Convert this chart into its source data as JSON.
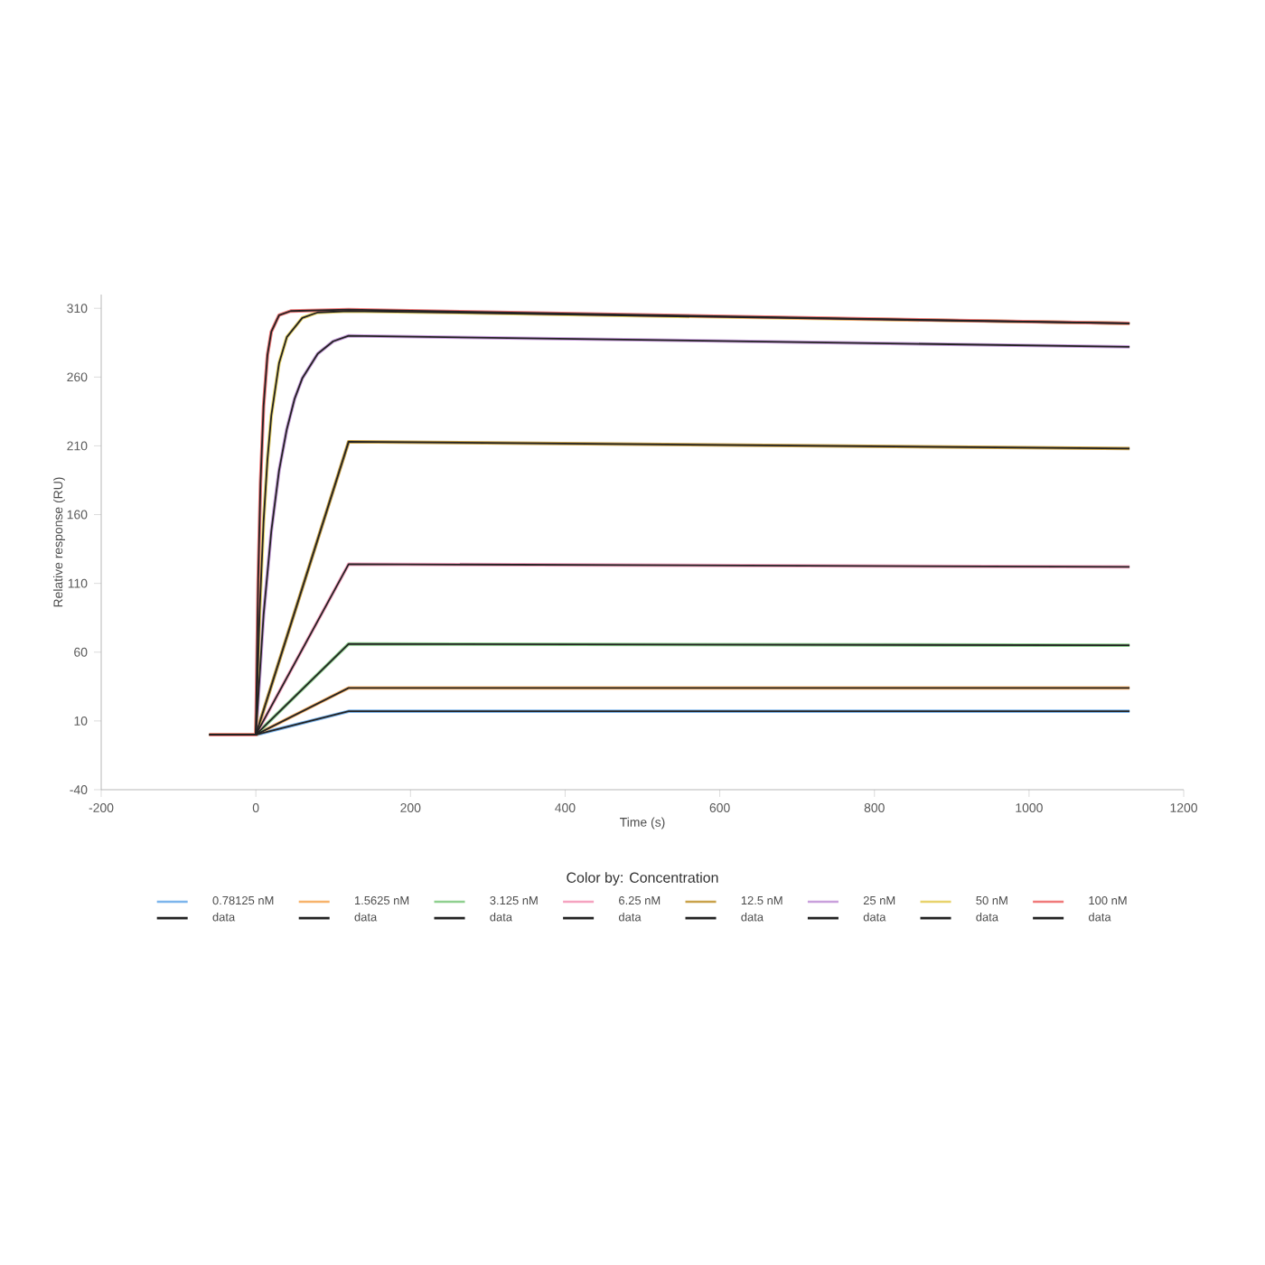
{
  "chart_data": {
    "type": "line",
    "xlabel": "Time (s)",
    "ylabel": "Relative response (RU)",
    "legend_title": "Color by: Concentration",
    "legend": "bottom",
    "xlim": [
      -200,
      1200
    ],
    "ylim": [
      -40,
      320
    ],
    "xticks": [
      -200,
      0,
      200,
      400,
      600,
      800,
      1000,
      1200
    ],
    "yticks": [
      -40,
      10,
      60,
      110,
      160,
      210,
      260,
      310
    ],
    "grid": false,
    "line_style": "solid",
    "series": [
      {
        "name": "0.78125 nM",
        "color": "#7cb5ec",
        "x": [
          -60,
          0,
          120,
          1130
        ],
        "values": [
          0,
          0,
          17,
          17
        ]
      },
      {
        "name": "1.5625 nM",
        "color": "#f7b36b",
        "x": [
          -60,
          0,
          120,
          1130
        ],
        "values": [
          0,
          0,
          34,
          34
        ]
      },
      {
        "name": "3.125 nM",
        "color": "#8fd08f",
        "x": [
          -60,
          0,
          120,
          1130
        ],
        "values": [
          0,
          0,
          66,
          65
        ]
      },
      {
        "name": "6.25 nM",
        "color": "#f5a3c0",
        "x": [
          -60,
          0,
          120,
          1130
        ],
        "values": [
          0,
          0,
          124,
          122
        ]
      },
      {
        "name": "12.5 nM",
        "color": "#c9a24a",
        "x": [
          -60,
          0,
          120,
          1130
        ],
        "values": [
          0,
          0,
          213,
          208
        ]
      },
      {
        "name": "25 nM",
        "color": "#c9a0dc",
        "x": [
          -60,
          0,
          10,
          20,
          30,
          40,
          50,
          60,
          80,
          100,
          120,
          1130
        ],
        "values": [
          0,
          0,
          87,
          148,
          192,
          222,
          244,
          259,
          277,
          286,
          290,
          282
        ]
      },
      {
        "name": "50 nM",
        "color": "#e8d36c",
        "x": [
          -60,
          0,
          5,
          10,
          15,
          20,
          30,
          40,
          60,
          80,
          120,
          1130
        ],
        "values": [
          0,
          0,
          91,
          155,
          200,
          232,
          270,
          289,
          303,
          307,
          308,
          299
        ]
      },
      {
        "name": "100 nM",
        "color": "#f07a7a",
        "x": [
          -60,
          0,
          3,
          6,
          10,
          15,
          20,
          30,
          45,
          120,
          1130
        ],
        "values": [
          0,
          0,
          112,
          183,
          239,
          276,
          293,
          305,
          308,
          309,
          299
        ]
      },
      {
        "name": "data",
        "color": "#222222",
        "x": [
          -60,
          0,
          120,
          1130
        ],
        "values": [
          0,
          0,
          17,
          17
        ]
      },
      {
        "name": "data",
        "color": "#222222",
        "x": [
          -60,
          0,
          120,
          1130
        ],
        "values": [
          0,
          0,
          34,
          34
        ]
      },
      {
        "name": "data",
        "color": "#222222",
        "x": [
          -60,
          0,
          120,
          1130
        ],
        "values": [
          0,
          0,
          66,
          65
        ]
      },
      {
        "name": "data",
        "color": "#222222",
        "x": [
          -60,
          0,
          120,
          1130
        ],
        "values": [
          0,
          0,
          124,
          122
        ]
      },
      {
        "name": "data",
        "color": "#222222",
        "x": [
          -60,
          0,
          120,
          1130
        ],
        "values": [
          0,
          0,
          213,
          208
        ]
      },
      {
        "name": "data",
        "color": "#222222",
        "x": [
          -60,
          0,
          10,
          20,
          30,
          40,
          50,
          60,
          80,
          100,
          120,
          1130
        ],
        "values": [
          0,
          0,
          87,
          148,
          192,
          222,
          244,
          259,
          277,
          286,
          290,
          282
        ]
      },
      {
        "name": "data",
        "color": "#222222",
        "x": [
          -60,
          0,
          5,
          10,
          15,
          20,
          30,
          40,
          60,
          80,
          120,
          1130
        ],
        "values": [
          0,
          0,
          91,
          155,
          200,
          232,
          270,
          289,
          303,
          307,
          308,
          299
        ]
      },
      {
        "name": "data",
        "color": "#222222",
        "x": [
          -60,
          0,
          3,
          6,
          10,
          15,
          20,
          30,
          45,
          120,
          1130
        ],
        "values": [
          0,
          0,
          112,
          183,
          239,
          276,
          293,
          305,
          308,
          309,
          299
        ]
      }
    ]
  }
}
